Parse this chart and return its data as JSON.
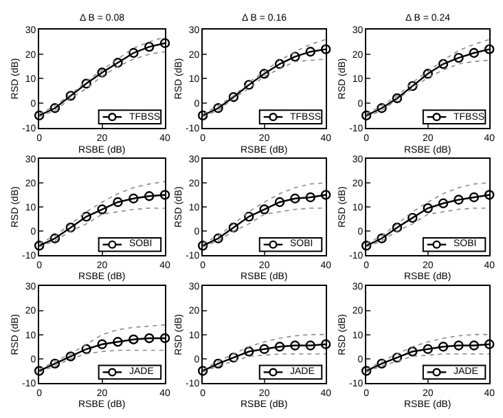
{
  "chart_data": [
    {
      "type": "line",
      "title": "Δ B = 0.08",
      "xlabel": "RSBE (dB)",
      "ylabel": "RSD (dB)",
      "xlim": [
        0,
        40
      ],
      "xticks": [
        0,
        20,
        40
      ],
      "ylim": [
        -10,
        30
      ],
      "yticks": [
        -10,
        0,
        10,
        20,
        30
      ],
      "grid": false,
      "legend": "bottom right",
      "x": [
        0,
        5,
        10,
        15,
        20,
        25,
        30,
        35,
        40
      ],
      "series": [
        {
          "name": "TFBSS",
          "color": "#000000",
          "marker": "circle",
          "line_style": "solid",
          "values": [
            -5,
            -2,
            3,
            8,
            12.5,
            16.5,
            20.5,
            23,
            24.5
          ]
        },
        {
          "color": "#888888",
          "marker": "none",
          "line_style": "dotted",
          "values": [
            -5.5,
            -3,
            2,
            6,
            11,
            15,
            18,
            20,
            21
          ]
        },
        {
          "color": "#888888",
          "marker": "none",
          "line_style": "dotted",
          "values": [
            -4.5,
            -1,
            3.5,
            9,
            13.5,
            18,
            22.5,
            25,
            27
          ]
        }
      ]
    },
    {
      "type": "line",
      "title": "Δ B = 0.16",
      "xlabel": "RSBE (dB)",
      "ylabel": "RSD (dB)",
      "xlim": [
        0,
        40
      ],
      "xticks": [
        0,
        20,
        40
      ],
      "ylim": [
        -10,
        30
      ],
      "yticks": [
        -10,
        0,
        10,
        20,
        30
      ],
      "grid": false,
      "legend": "bottom right",
      "x": [
        0,
        5,
        10,
        15,
        20,
        25,
        30,
        35,
        40
      ],
      "series": [
        {
          "name": "TFBSS",
          "color": "#000000",
          "marker": "circle",
          "line_style": "solid",
          "values": [
            -5,
            -2,
            2.5,
            7.5,
            12,
            16,
            19,
            21,
            22
          ]
        },
        {
          "color": "#888888",
          "marker": "none",
          "line_style": "dotted",
          "values": [
            -5.5,
            -3,
            2,
            6,
            11,
            14,
            17,
            17.5,
            18
          ]
        },
        {
          "color": "#888888",
          "marker": "none",
          "line_style": "dotted",
          "values": [
            -4.5,
            -1,
            3,
            8.5,
            13,
            17.5,
            21,
            24,
            26
          ]
        }
      ]
    },
    {
      "type": "line",
      "title": "Δ B = 0.24",
      "xlabel": "RSBE (dB)",
      "ylabel": "RSD (dB)",
      "xlim": [
        0,
        40
      ],
      "xticks": [
        0,
        20,
        40
      ],
      "ylim": [
        -10,
        30
      ],
      "yticks": [
        -10,
        0,
        10,
        20,
        30
      ],
      "grid": false,
      "legend": "bottom right",
      "x": [
        0,
        5,
        10,
        15,
        20,
        25,
        30,
        35,
        40
      ],
      "series": [
        {
          "name": "TFBSS",
          "color": "#000000",
          "marker": "circle",
          "line_style": "solid",
          "values": [
            -5,
            -2,
            2,
            7,
            12,
            16,
            18.5,
            20.5,
            22
          ]
        },
        {
          "color": "#888888",
          "marker": "none",
          "line_style": "dotted",
          "values": [
            -5.5,
            -3,
            1.5,
            6,
            10.5,
            13.5,
            16,
            17,
            17.5
          ]
        },
        {
          "color": "#888888",
          "marker": "none",
          "line_style": "dotted",
          "values": [
            -4.5,
            -1,
            3,
            8.5,
            13,
            17.5,
            21.5,
            24,
            26
          ]
        }
      ]
    },
    {
      "type": "line",
      "xlabel": "RSBE (dB)",
      "ylabel": "RSD (dB)",
      "xlim": [
        0,
        40
      ],
      "xticks": [
        0,
        20,
        40
      ],
      "ylim": [
        -10,
        30
      ],
      "yticks": [
        -10,
        0,
        10,
        20,
        30
      ],
      "grid": false,
      "legend": "bottom right",
      "x": [
        0,
        5,
        10,
        15,
        20,
        25,
        30,
        35,
        40
      ],
      "series": [
        {
          "name": "SOBI",
          "color": "#000000",
          "marker": "circle",
          "line_style": "solid",
          "values": [
            -6,
            -3,
            1.5,
            6,
            9,
            12,
            13.5,
            14.5,
            15
          ]
        },
        {
          "color": "#888888",
          "marker": "none",
          "line_style": "dotted",
          "values": [
            -6.5,
            -4,
            0,
            3,
            7,
            8,
            9,
            9.5,
            9.5
          ]
        },
        {
          "color": "#888888",
          "marker": "none",
          "line_style": "dotted",
          "values": [
            -5,
            -2,
            3,
            8,
            12,
            15.5,
            18,
            19.5,
            20.5
          ]
        }
      ]
    },
    {
      "type": "line",
      "xlabel": "RSBE (dB)",
      "ylabel": "RSD (dB)",
      "xlim": [
        0,
        40
      ],
      "xticks": [
        0,
        20,
        40
      ],
      "ylim": [
        -10,
        30
      ],
      "yticks": [
        -10,
        0,
        10,
        20,
        30
      ],
      "grid": false,
      "legend": "bottom right",
      "x": [
        0,
        5,
        10,
        15,
        20,
        25,
        30,
        35,
        40
      ],
      "series": [
        {
          "name": "SOBI",
          "color": "#000000",
          "marker": "circle",
          "line_style": "solid",
          "values": [
            -6,
            -3,
            1.5,
            6,
            9,
            12,
            13.5,
            14,
            15
          ]
        },
        {
          "color": "#888888",
          "marker": "none",
          "line_style": "dotted",
          "values": [
            -6.5,
            -4,
            0,
            3,
            7,
            8,
            9,
            9.5,
            9.5
          ]
        },
        {
          "color": "#888888",
          "marker": "none",
          "line_style": "dotted",
          "values": [
            -5,
            -2,
            3,
            8,
            12,
            15.5,
            18,
            19.5,
            20
          ]
        }
      ]
    },
    {
      "type": "line",
      "xlabel": "RSBE (dB)",
      "ylabel": "RSD (dB)",
      "xlim": [
        0,
        40
      ],
      "xticks": [
        0,
        20,
        40
      ],
      "ylim": [
        -10,
        30
      ],
      "yticks": [
        -10,
        0,
        10,
        20,
        30
      ],
      "grid": false,
      "legend": "bottom right",
      "x": [
        0,
        5,
        10,
        15,
        20,
        25,
        30,
        35,
        40
      ],
      "series": [
        {
          "name": "SOBI",
          "color": "#000000",
          "marker": "circle",
          "line_style": "solid",
          "values": [
            -6,
            -3,
            1.5,
            5.5,
            9.5,
            11.5,
            13,
            14,
            15
          ]
        },
        {
          "color": "#888888",
          "marker": "none",
          "line_style": "dotted",
          "values": [
            -6.5,
            -4,
            0,
            3,
            7,
            8,
            9,
            9.5,
            9.5
          ]
        },
        {
          "color": "#888888",
          "marker": "none",
          "line_style": "dotted",
          "values": [
            -5,
            -2,
            3,
            8,
            12,
            15.5,
            18,
            19.5,
            20
          ]
        }
      ]
    },
    {
      "type": "line",
      "xlabel": "RSBE (dB)",
      "ylabel": "RSD (dB)",
      "xlim": [
        0,
        40
      ],
      "xticks": [
        0,
        20,
        40
      ],
      "ylim": [
        -10,
        30
      ],
      "yticks": [
        -10,
        0,
        10,
        20,
        30
      ],
      "grid": false,
      "legend": "bottom right",
      "x": [
        0,
        5,
        10,
        15,
        20,
        25,
        30,
        35,
        40
      ],
      "series": [
        {
          "name": "JADE",
          "color": "#000000",
          "marker": "circle",
          "line_style": "solid",
          "values": [
            -5,
            -2,
            1,
            4,
            6,
            7,
            8,
            8.5,
            8.5
          ]
        },
        {
          "color": "#888888",
          "marker": "none",
          "line_style": "dotted",
          "values": [
            -5.5,
            -3,
            0,
            2,
            3,
            3.5,
            3.5,
            3.5,
            3.5
          ]
        },
        {
          "color": "#888888",
          "marker": "none",
          "line_style": "dotted",
          "values": [
            -4.5,
            -1,
            2,
            6,
            10,
            12,
            13,
            13.5,
            14
          ]
        }
      ]
    },
    {
      "type": "line",
      "xlabel": "RSBE (dB)",
      "ylabel": "RSD (dB)",
      "xlim": [
        0,
        40
      ],
      "xticks": [
        0,
        20,
        40
      ],
      "ylim": [
        -10,
        30
      ],
      "yticks": [
        -10,
        0,
        10,
        20,
        30
      ],
      "grid": false,
      "legend": "bottom right",
      "x": [
        0,
        5,
        10,
        15,
        20,
        25,
        30,
        35,
        40
      ],
      "series": [
        {
          "name": "JADE",
          "color": "#000000",
          "marker": "circle",
          "line_style": "solid",
          "values": [
            -5,
            -2,
            0.5,
            3,
            4,
            5,
            5.5,
            5.5,
            6
          ]
        },
        {
          "color": "#888888",
          "marker": "none",
          "line_style": "dotted",
          "values": [
            -5.5,
            -3,
            -1,
            1,
            1.5,
            2,
            2,
            2,
            2
          ]
        },
        {
          "color": "#888888",
          "marker": "none",
          "line_style": "dotted",
          "values": [
            -4.5,
            -1,
            2,
            5,
            7,
            8.5,
            9.5,
            10,
            10
          ]
        }
      ]
    },
    {
      "type": "line",
      "xlabel": "RSBE (dB)",
      "ylabel": "RSD (dB)",
      "xlim": [
        0,
        40
      ],
      "xticks": [
        0,
        20,
        40
      ],
      "ylim": [
        -10,
        30
      ],
      "yticks": [
        -10,
        0,
        10,
        20,
        30
      ],
      "grid": false,
      "legend": "bottom right",
      "x": [
        0,
        5,
        10,
        15,
        20,
        25,
        30,
        35,
        40
      ],
      "series": [
        {
          "name": "JADE",
          "color": "#000000",
          "marker": "circle",
          "line_style": "solid",
          "values": [
            -5,
            -2,
            0.5,
            3,
            4,
            5,
            5.5,
            5.5,
            6
          ]
        },
        {
          "color": "#888888",
          "marker": "none",
          "line_style": "dotted",
          "values": [
            -5.5,
            -3,
            -1,
            1,
            1.5,
            2,
            2,
            2,
            2
          ]
        },
        {
          "color": "#888888",
          "marker": "none",
          "line_style": "dotted",
          "values": [
            -4.5,
            -1,
            2,
            5,
            7,
            8.5,
            9.5,
            10,
            10
          ]
        }
      ]
    }
  ]
}
